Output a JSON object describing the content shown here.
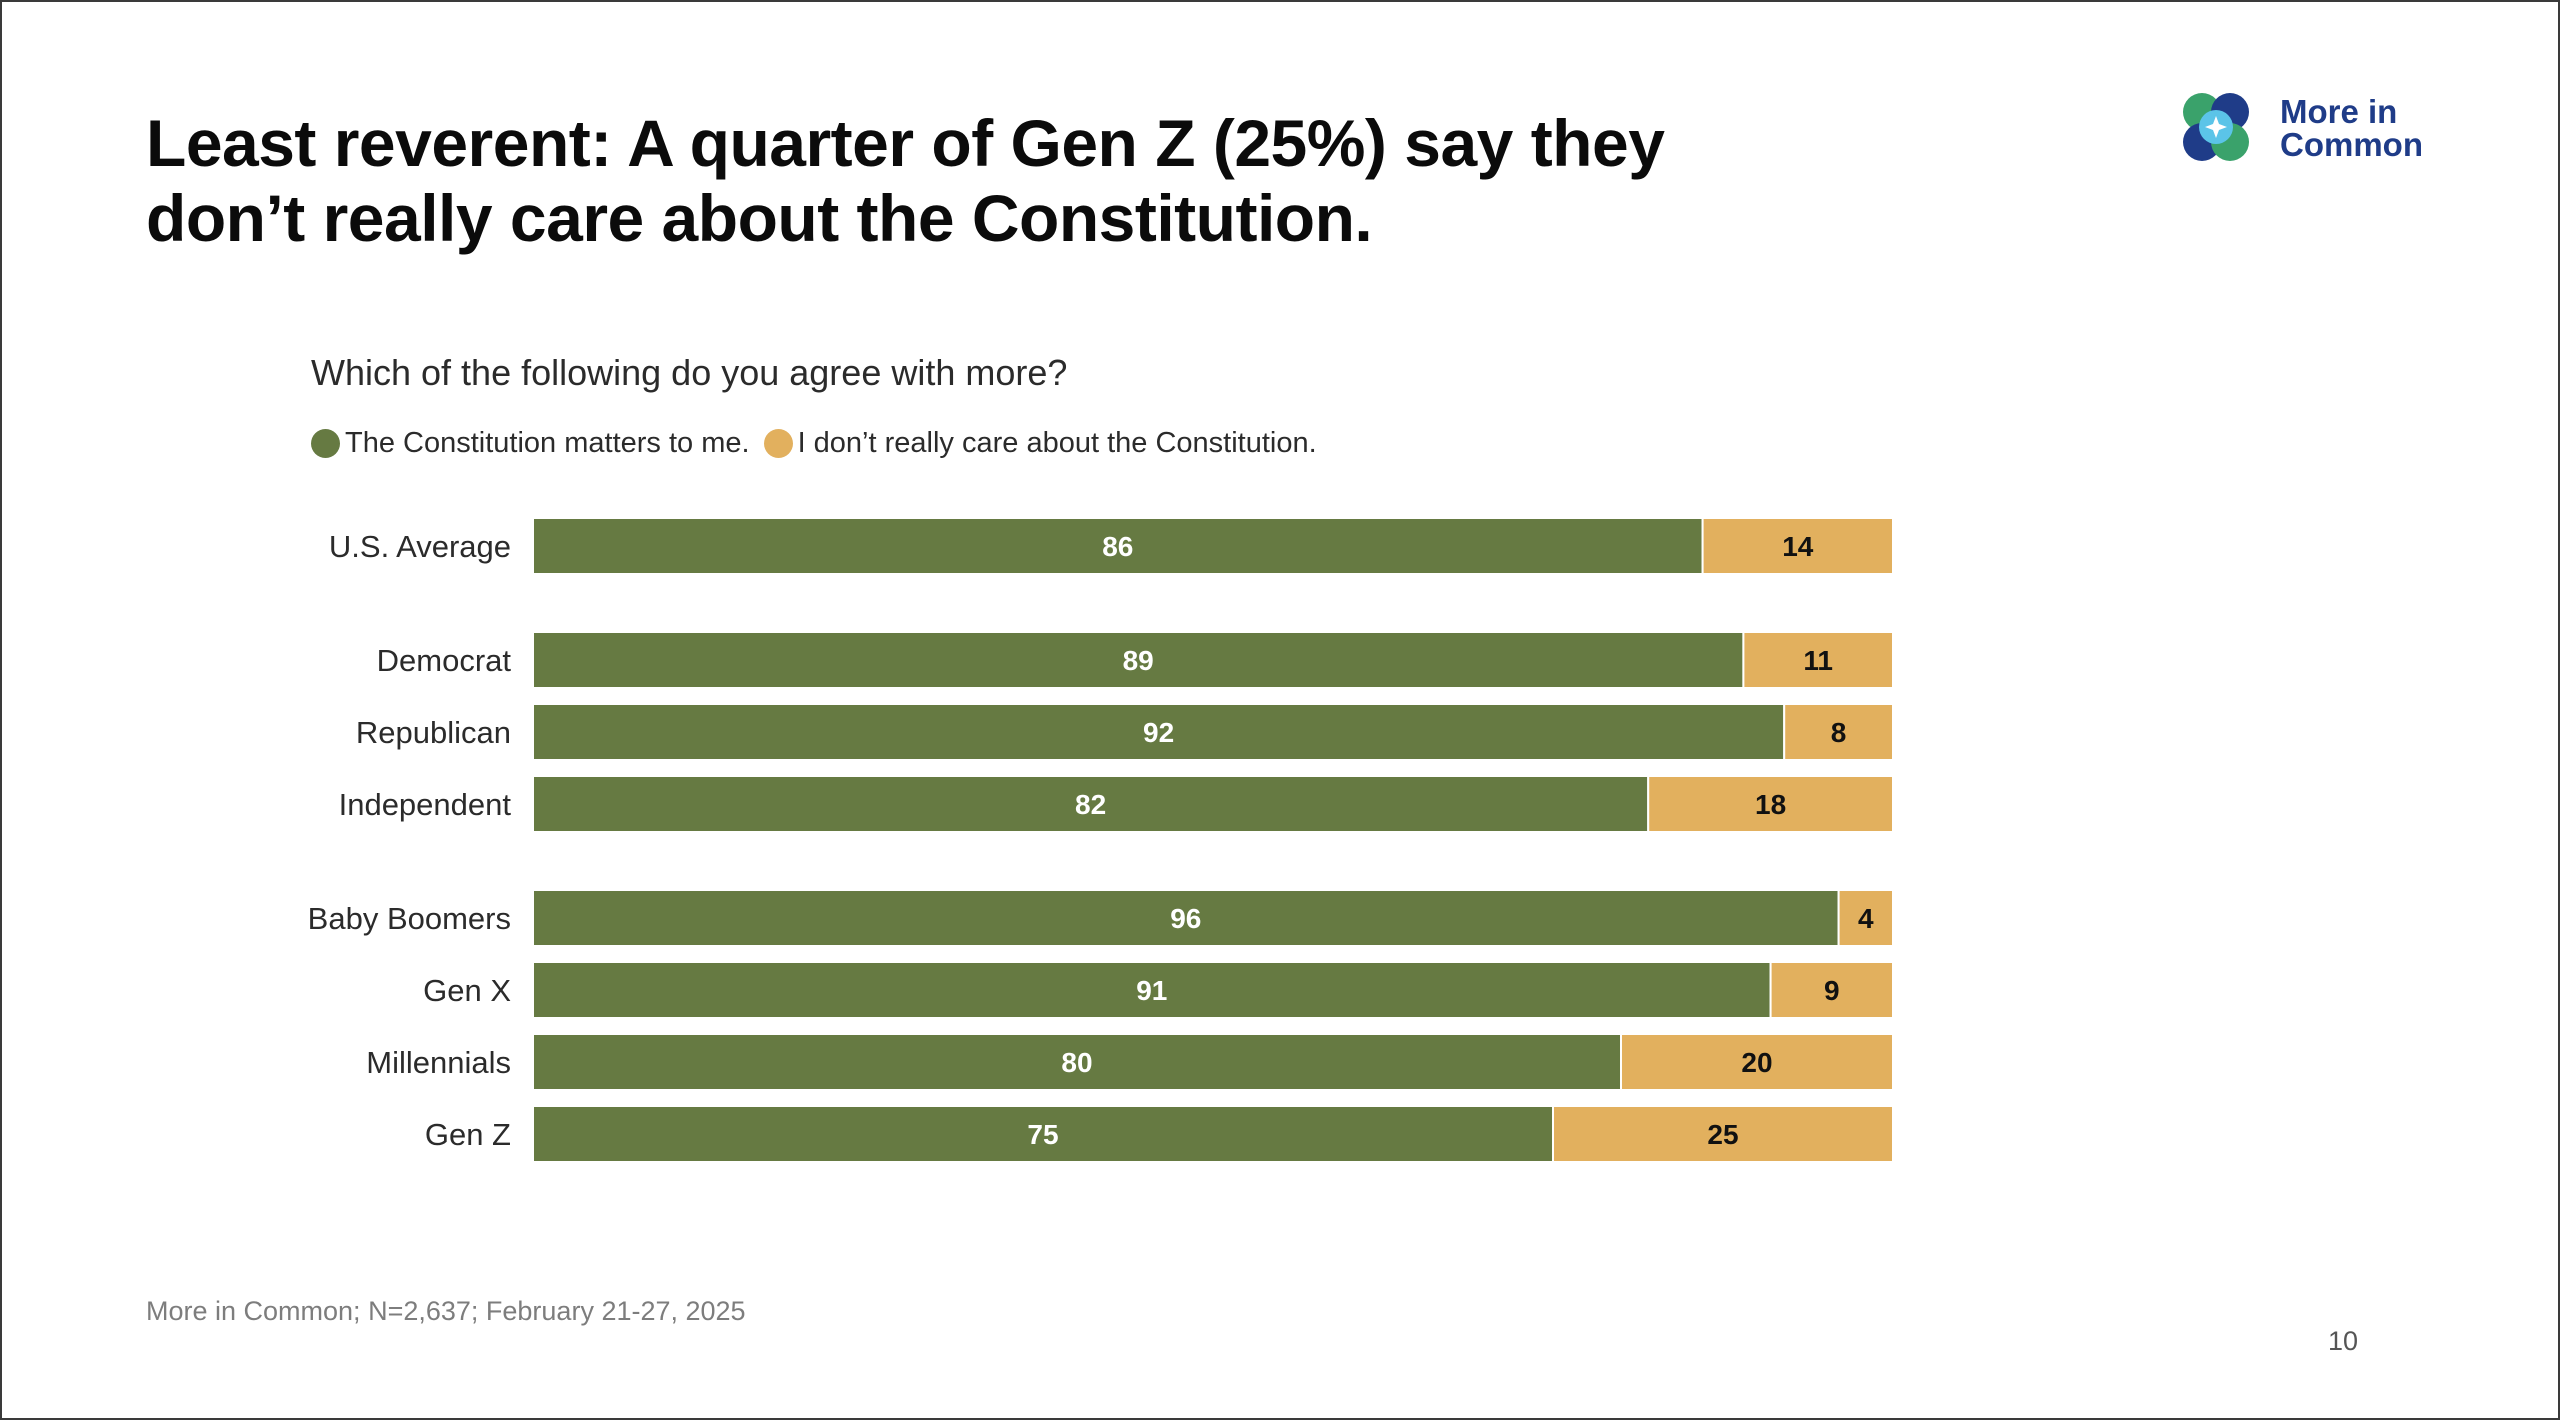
{
  "slide": {
    "title_lines": [
      "Least reverent: A quarter of Gen Z (25%) say they",
      "don’t really care about the Constitution."
    ],
    "logo": {
      "line1": "More in",
      "line2": "Common"
    },
    "source": "More in Common; N=2,637; February 21-27, 2025",
    "page_number": "10"
  },
  "chart_data": {
    "type": "bar",
    "orientation": "horizontal",
    "stacked": true,
    "title": "Which of the following do you agree with more?",
    "xlim": [
      0,
      100
    ],
    "categories": [
      "U.S. Average",
      "Democrat",
      "Republican",
      "Independent",
      "Baby Boomers",
      "Gen X",
      "Millennials",
      "Gen Z"
    ],
    "groups": [
      [
        0
      ],
      [
        1,
        2,
        3
      ],
      [
        4,
        5,
        6,
        7
      ]
    ],
    "series": [
      {
        "name": "The Constitution matters to me.",
        "color": "#667a42",
        "label_color": "#ffffff",
        "values": [
          86,
          89,
          92,
          82,
          96,
          91,
          80,
          75
        ]
      },
      {
        "name": "I don’t really care about the Constitution.",
        "color": "#e2b05e",
        "label_color": "#111111",
        "values": [
          14,
          11,
          8,
          18,
          4,
          9,
          20,
          25
        ]
      }
    ],
    "legend_position": "top-left"
  }
}
